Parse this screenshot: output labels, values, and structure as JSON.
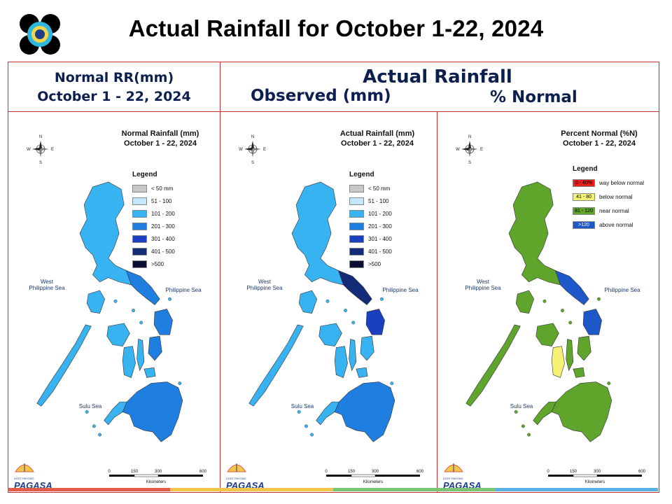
{
  "header": {
    "title": "Actual Rainfall for October 1-22, 2024"
  },
  "columns": {
    "normal_line1": "Normal RR(mm)",
    "normal_line2": "October 1 - 22, 2024",
    "actual": "Actual Rainfall",
    "observed": "Observed (mm)",
    "percent": "% Normal"
  },
  "panels": [
    {
      "title1": "Normal Rainfall (mm)",
      "title2": "October 1 - 22, 2024",
      "legend_title": "Legend",
      "legend": [
        {
          "label": "< 50 mm",
          "color": "#c8c8c8"
        },
        {
          "label": "51 - 100",
          "color": "#c6e6fb"
        },
        {
          "label": "101 - 200",
          "color": "#38b3f2"
        },
        {
          "label": "201 - 300",
          "color": "#1f7fe0"
        },
        {
          "label": "301 - 400",
          "color": "#1a3fbf"
        },
        {
          "label": "401 - 500",
          "color": "#142b78"
        },
        {
          "label": ">500",
          "color": "#0a0f33"
        }
      ],
      "sea_west": "West\nPhilippine Sea",
      "sea_east": "Philippine Sea",
      "sea_south": "Sulu Sea"
    },
    {
      "title1": "Actual Rainfall (mm)",
      "title2": "October 1 - 22, 2024",
      "legend_title": "Legend",
      "legend": [
        {
          "label": "< 50 mm",
          "color": "#c8c8c8"
        },
        {
          "label": "51 - 100",
          "color": "#c6e6fb"
        },
        {
          "label": "101 - 200",
          "color": "#38b3f2"
        },
        {
          "label": "201 - 300",
          "color": "#1f7fe0"
        },
        {
          "label": "301 - 400",
          "color": "#1a3fbf"
        },
        {
          "label": "401 - 500",
          "color": "#142b78"
        },
        {
          "label": ">500",
          "color": "#0a0f33"
        }
      ],
      "sea_west": "West\nPhilippine Sea",
      "sea_east": "Philippine Sea",
      "sea_south": "Sulu Sea"
    },
    {
      "title1": "Percent Normal (%N)",
      "title2": "October 1 - 22, 2024",
      "legend_title": "Legend",
      "legend": [
        {
          "swatch": "0 - 40%",
          "label": "way below normal",
          "color": "#e8201c"
        },
        {
          "swatch": "41 - 80",
          "label": "below normal",
          "color": "#f4f276"
        },
        {
          "swatch": "81 - 120",
          "label": "near normal",
          "color": "#5fa52b"
        },
        {
          "swatch": ">120",
          "label": "above normal",
          "color": "#1f58c9"
        }
      ],
      "sea_west": "West\nPhilippine Sea",
      "sea_east": "Philippine Sea",
      "sea_south": "Sulu Sea"
    }
  ],
  "compass": {
    "n": "N",
    "s": "S",
    "e": "E",
    "w": "W"
  },
  "scale": {
    "ticks": [
      "0",
      "150",
      "300",
      "600"
    ],
    "unit": "Kilometers"
  },
  "branding": {
    "dost": "DOST",
    "pagasa": "PAGASA",
    "payong": "PAYONG"
  },
  "colors": {
    "frame": "#c62f2f",
    "heading": "#0d1f4f",
    "land_normal": "#38b3f2",
    "land_pct": "#5fa52b",
    "bottom_stripes": [
      "#e45d4c",
      "#f1c64a",
      "#7cc576",
      "#5ab0e2"
    ]
  }
}
